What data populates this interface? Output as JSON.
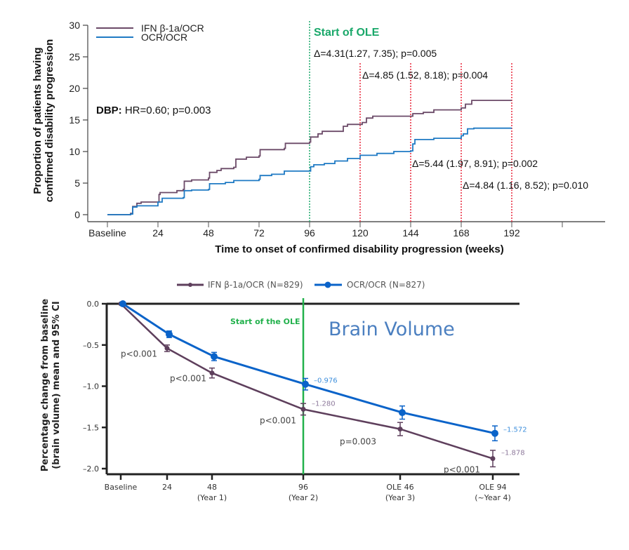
{
  "chart_data": [
    {
      "type": "line",
      "subtype": "step",
      "title": "",
      "xlabel": "Time to onset of confirmed disability progression (weeks)",
      "ylabel_lines": [
        "Proportion of patients having",
        "confirmed disability progression"
      ],
      "xlim": [
        0,
        200
      ],
      "ylim": [
        0,
        30
      ],
      "x_ticks": [
        {
          "value": 0,
          "label": "Baseline"
        },
        {
          "value": 24,
          "label": "24"
        },
        {
          "value": 48,
          "label": "48"
        },
        {
          "value": 72,
          "label": "72"
        },
        {
          "value": 96,
          "label": "96"
        },
        {
          "value": 120,
          "label": "120"
        },
        {
          "value": 144,
          "label": "144"
        },
        {
          "value": 168,
          "label": "168"
        },
        {
          "value": 192,
          "label": "192"
        }
      ],
      "y_ticks": [
        0,
        5,
        10,
        15,
        20,
        25,
        30
      ],
      "legend": {
        "placement": "top-left"
      },
      "series": [
        {
          "name": "IFN β-1a/OCR",
          "color": "#6b4a68",
          "x": [
            0,
            11,
            12,
            14,
            16,
            24,
            24.5,
            25,
            33,
            36,
            36.5,
            40,
            48,
            48.5,
            52,
            54,
            60,
            61,
            66,
            72,
            72.5,
            84,
            84.5,
            96,
            96.5,
            100,
            102,
            110,
            112,
            114,
            120,
            121,
            123,
            126,
            144,
            145,
            150,
            155,
            168,
            170,
            173,
            192
          ],
          "y": [
            0,
            0.2,
            1.3,
            1.8,
            2.0,
            2.0,
            3.2,
            3.5,
            3.8,
            4.0,
            5.3,
            5.5,
            5.8,
            6.7,
            7.0,
            7.3,
            7.5,
            8.8,
            9.1,
            9.3,
            10.3,
            10.5,
            11.3,
            11.5,
            12.3,
            12.8,
            13.2,
            13.2,
            14.0,
            14.3,
            14.3,
            14.6,
            15.3,
            15.6,
            15.6,
            16.0,
            16.2,
            16.6,
            16.9,
            17.5,
            18.1,
            18.1
          ]
        },
        {
          "name": "OCR/OCR",
          "color": "#1f7ac4",
          "x": [
            0,
            11,
            12,
            14,
            23,
            24,
            26,
            36,
            36.5,
            40,
            48,
            48.5,
            56,
            60,
            72,
            72.5,
            78,
            84,
            96,
            96.5,
            98,
            103,
            108,
            114,
            120,
            128,
            136,
            144,
            145,
            146,
            155,
            168,
            169,
            171,
            174,
            192
          ],
          "y": [
            0,
            0.1,
            1.2,
            1.4,
            1.4,
            2.0,
            2.6,
            2.7,
            3.8,
            3.9,
            4.0,
            4.9,
            5.1,
            5.4,
            5.6,
            6.2,
            6.4,
            6.9,
            6.9,
            7.6,
            7.9,
            8.1,
            8.5,
            8.9,
            9.4,
            9.7,
            10.0,
            10.1,
            11.2,
            11.9,
            12.1,
            12.5,
            12.8,
            13.6,
            13.7,
            13.7
          ]
        }
      ],
      "reference_lines": [
        {
          "x": 96,
          "color": "#1aa86a",
          "style": "dotted",
          "label": "Start of OLE"
        },
        {
          "x": 120,
          "color": "#e8263a",
          "style": "dotted"
        },
        {
          "x": 144,
          "color": "#e8263a",
          "style": "dotted"
        },
        {
          "x": 168,
          "color": "#e8263a",
          "style": "dotted"
        },
        {
          "x": 192,
          "color": "#e8263a",
          "style": "dotted"
        }
      ],
      "annotations": {
        "dbp_label": "DBP:",
        "dbp_text": "HR=0.60; p=0.003",
        "ole_label": "Start of OLE",
        "delta_96": "Δ=4.31(1.27, 7.35); p=0.005",
        "delta_120": "Δ=4.85 (1.52, 8.18); p=0.004",
        "delta_144": "Δ=5.44 (1.97, 8.91); p=0.002",
        "delta_168": "Δ=4.84 (1.16, 8.52); p=0.010"
      }
    },
    {
      "type": "line",
      "title": "Brain Volume",
      "xlabel": "",
      "ylabel_lines": [
        "Percentage change from baseline",
        "(brain volume) mean and 95% CI"
      ],
      "ylim": [
        -2.05,
        0
      ],
      "y_ticks": [
        {
          "value": 0.0,
          "label": "0.0"
        },
        {
          "value": -0.5,
          "label": "–0.5"
        },
        {
          "value": -1.0,
          "label": "–1.0"
        },
        {
          "value": -1.5,
          "label": "–1.5"
        },
        {
          "value": -2.0,
          "label": "–2.0"
        }
      ],
      "x_ticks": [
        {
          "key": "baseline",
          "line1": "Baseline",
          "line2": ""
        },
        {
          "key": "w24",
          "line1": "24",
          "line2": ""
        },
        {
          "key": "w48",
          "line1": "48",
          "line2": "(Year 1)"
        },
        {
          "key": "w96",
          "line1": "96",
          "line2": "(Year 2)"
        },
        {
          "key": "ole46",
          "line1": "OLE 46",
          "line2": "(Year 3)"
        },
        {
          "key": "ole94",
          "line1": "OLE 94",
          "line2": "(~Year 4)"
        }
      ],
      "x_index": [
        0,
        24,
        48,
        96,
        147,
        196
      ],
      "legend": {
        "placement": "top-center"
      },
      "series": [
        {
          "name": "IFN β-1a/OCR (N=829)",
          "color": "#5e3f5c",
          "values": [
            0.0,
            -0.54,
            -0.84,
            -1.28,
            -1.52,
            -1.878
          ],
          "ci_half": [
            0.0,
            0.04,
            0.06,
            0.07,
            0.08,
            0.1
          ],
          "value_labels": [
            "",
            "",
            "",
            "–1.280",
            "",
            "–1.878"
          ]
        },
        {
          "name": "OCR/OCR (N=827)",
          "color": "#0a63c9",
          "values": [
            0.0,
            -0.37,
            -0.64,
            -0.976,
            -1.32,
            -1.572
          ],
          "ci_half": [
            0.0,
            0.04,
            0.05,
            0.07,
            0.08,
            0.09
          ],
          "value_labels": [
            "",
            "",
            "",
            "–0.976",
            "",
            "–1.572"
          ]
        }
      ],
      "p_values": [
        "",
        "p<0.001",
        "p<0.001",
        "p<0.001",
        "p=0.003",
        "p<0.001"
      ],
      "reference_line": {
        "at": "w96",
        "color": "#22b14c",
        "label": "Start of the OLE"
      }
    }
  ]
}
